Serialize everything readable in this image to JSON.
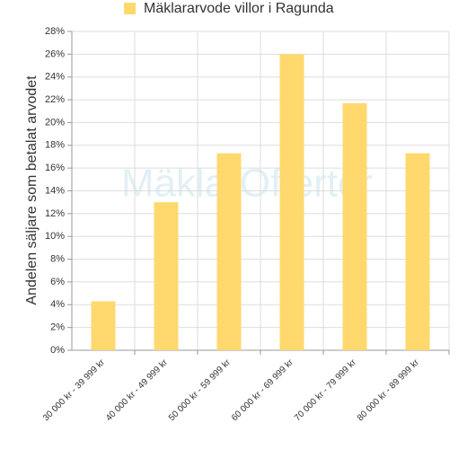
{
  "chart_data": {
    "type": "bar",
    "legend_position": "top",
    "watermark": "MäklarOfferter",
    "y_label": "Andelen säljare som betalat arvodet",
    "categories": [
      "30 000 kr - 39 999 kr",
      "40 000 kr - 49 999 kr",
      "50 000 kr - 59 999 kr",
      "60 000 kr - 69 999 kr",
      "70 000 kr - 79 999 kr",
      "80 000 kr - 89 999 kr"
    ],
    "series": [
      {
        "name": "Mäklararvode villor i Ragunda",
        "color": "#ffd86e",
        "values": [
          4.3,
          13,
          17.3,
          26,
          21.7,
          17.3
        ]
      }
    ],
    "ylim": [
      0,
      28
    ],
    "yticks": [
      {
        "value": 0,
        "label": "0%"
      },
      {
        "value": 2,
        "label": "2%"
      },
      {
        "value": 4,
        "label": "4%"
      },
      {
        "value": 6,
        "label": "6%"
      },
      {
        "value": 8,
        "label": "8%"
      },
      {
        "value": 10,
        "label": "10%"
      },
      {
        "value": 12,
        "label": "12%"
      },
      {
        "value": 14,
        "label": "14%"
      },
      {
        "value": 16,
        "label": "16%"
      },
      {
        "value": 18,
        "label": "18%"
      },
      {
        "value": 20,
        "label": "20%"
      },
      {
        "value": 22,
        "label": "22%"
      },
      {
        "value": 24,
        "label": "24%"
      },
      {
        "value": 26,
        "label": "26%"
      },
      {
        "value": 28,
        "label": "28%"
      }
    ],
    "grid": true
  }
}
